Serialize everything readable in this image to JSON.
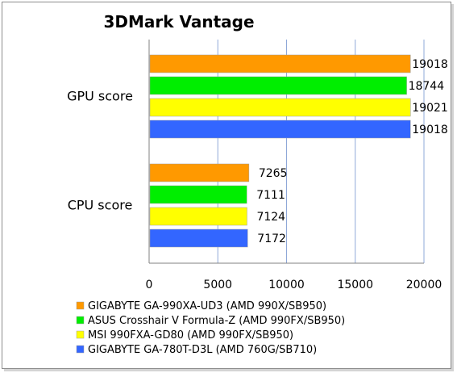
{
  "chart_data": {
    "type": "bar",
    "orientation": "horizontal",
    "title": "3DMark Vantage",
    "categories": [
      "GPU score",
      "CPU score"
    ],
    "series": [
      {
        "name": "GIGABYTE GA-990XA-UD3 (AMD 990X/SB950)",
        "color": "#ff9900",
        "values": [
          19018,
          7265
        ],
        "labels": [
          "19018",
          "7265"
        ]
      },
      {
        "name": "ASUS Crosshair V Formula-Z (AMD 990FX/SB950)",
        "color": "#00ee00",
        "values": [
          18744,
          7111
        ],
        "labels": [
          "18744",
          "7111"
        ]
      },
      {
        "name": "MSI 990FXA-GD80 (AMD 990FX/SB950)",
        "color": "#ffff00",
        "values": [
          19021,
          7124
        ],
        "labels": [
          "19021",
          "7124"
        ]
      },
      {
        "name": "GIGABYTE GA-780T-D3L (AMD 760G/SB710)",
        "color": "#3366ff",
        "values": [
          19018,
          7172
        ],
        "labels": [
          "19018",
          "7172"
        ]
      }
    ],
    "xlim": [
      0,
      20000
    ],
    "xticks": [
      0,
      5000,
      10000,
      15000,
      20000
    ],
    "xtick_labels": [
      "0",
      "5000",
      "10000",
      "15000",
      "20000"
    ],
    "grid": true,
    "legend_position": "bottom-left"
  }
}
